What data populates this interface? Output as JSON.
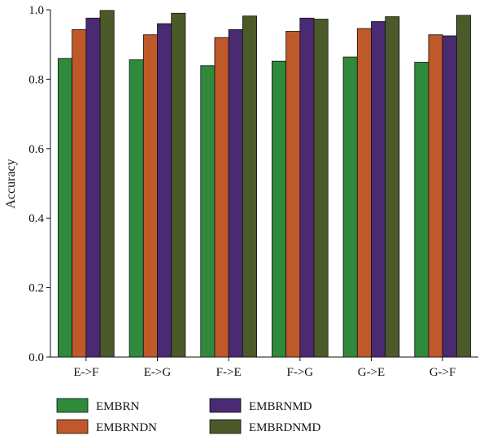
{
  "chart_data": {
    "type": "bar",
    "title": "",
    "xlabel": "",
    "ylabel": "Accuracy",
    "ylim": [
      0,
      1.0
    ],
    "yticks": [
      "0.0",
      "0.2",
      "0.4",
      "0.6",
      "0.8",
      "1.0"
    ],
    "grid": false,
    "legend_position": "bottom",
    "categories": [
      "E->F",
      "E->G",
      "F->E",
      "F->G",
      "G->E",
      "G->F"
    ],
    "series": [
      {
        "name": "EMBRN",
        "color": "#2f8a3c",
        "values": [
          0.86,
          0.856,
          0.839,
          0.852,
          0.864,
          0.849
        ]
      },
      {
        "name": "EMBRNDN",
        "color": "#c0592a",
        "values": [
          0.943,
          0.928,
          0.92,
          0.938,
          0.946,
          0.928
        ]
      },
      {
        "name": "EMBRNMD",
        "color": "#4a2a72",
        "values": [
          0.976,
          0.96,
          0.943,
          0.976,
          0.966,
          0.925
        ]
      },
      {
        "name": "EMBRDNMD",
        "color": "#4c5a2a",
        "values": [
          0.998,
          0.99,
          0.982,
          0.973,
          0.98,
          0.984
        ]
      }
    ]
  }
}
